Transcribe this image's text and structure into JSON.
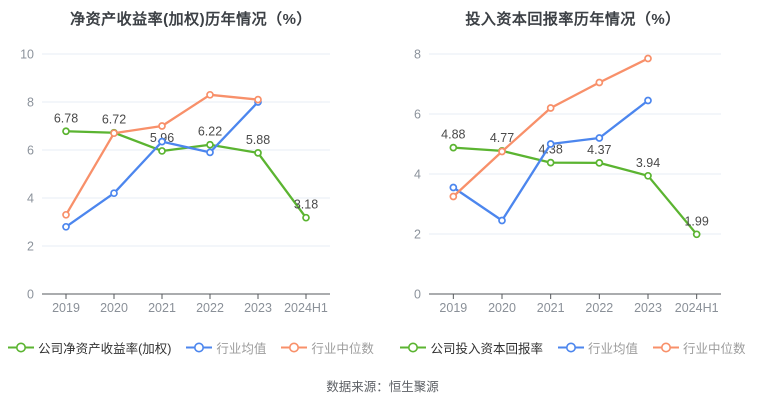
{
  "footer": {
    "source": "数据来源：恒生聚源"
  },
  "chart_data": [
    {
      "type": "line",
      "title": "净资产收益率(加权)历年情况（%）",
      "categories": [
        "2019",
        "2020",
        "2021",
        "2022",
        "2023",
        "2024H1"
      ],
      "ylim": [
        0,
        10
      ],
      "y_ticks": [
        0,
        2,
        4,
        6,
        8,
        10
      ],
      "grid": true,
      "legend_position": "bottom",
      "series": [
        {
          "name": "公司净资产收益率(加权)",
          "color": "#5bb431",
          "values": [
            6.78,
            6.72,
            5.96,
            6.22,
            5.88,
            3.18
          ],
          "labels": [
            "6.78",
            "6.72",
            "5.96",
            "6.22",
            "5.88",
            "3.18"
          ]
        },
        {
          "name": "行业均值",
          "color": "#4c86ee",
          "values": [
            2.8,
            4.2,
            6.35,
            5.9,
            8.0,
            null
          ]
        },
        {
          "name": "行业中位数",
          "color": "#f8906a",
          "values": [
            3.3,
            6.7,
            7.0,
            8.3,
            8.1,
            null
          ]
        }
      ]
    },
    {
      "type": "line",
      "title": "投入资本回报率历年情况（%）",
      "categories": [
        "2019",
        "2020",
        "2021",
        "2022",
        "2023",
        "2024H1"
      ],
      "ylim": [
        0,
        8
      ],
      "y_ticks": [
        0,
        2,
        4,
        6,
        8
      ],
      "grid": true,
      "legend_position": "bottom",
      "series": [
        {
          "name": "公司投入资本回报率",
          "color": "#5bb431",
          "values": [
            4.88,
            4.77,
            4.38,
            4.37,
            3.94,
            1.99
          ],
          "labels": [
            "4.88",
            "4.77",
            "4.38",
            "4.37",
            "3.94",
            "1.99"
          ]
        },
        {
          "name": "行业均值",
          "color": "#4c86ee",
          "values": [
            3.55,
            2.45,
            5.0,
            5.2,
            6.45,
            null
          ]
        },
        {
          "name": "行业中位数",
          "color": "#f8906a",
          "values": [
            3.25,
            4.75,
            6.2,
            7.05,
            7.85,
            null
          ]
        }
      ]
    }
  ]
}
